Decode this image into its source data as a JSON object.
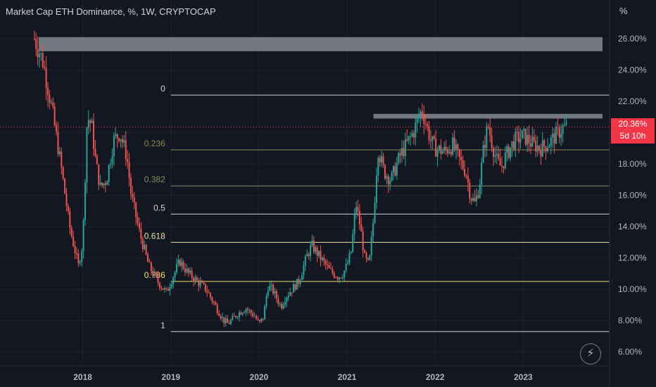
{
  "header": {
    "title": "Market Cap ETH Dominance, %, 1W, CRYPTOCAP",
    "unit_label": "%"
  },
  "price_tag": {
    "value": "20.36%",
    "countdown": "5d 10h"
  },
  "icons": {
    "flash": "lightning-icon"
  },
  "colors": {
    "background": "#131722",
    "up": "#26a69a",
    "down": "#ef5350",
    "fib_neutral": "#d1d4dc",
    "fib_0236": "#8a8656",
    "fib_0382": "#8a8c5c",
    "fib_0618": "#e9e1a6",
    "fib_0786": "#f2e36b",
    "resistance": "#9598a1",
    "last_price": "#f23645"
  },
  "chart_data": {
    "type": "candlestick",
    "title": "Market Cap ETH Dominance, %, 1W, CRYPTOCAP",
    "x_ticks": [
      "2018",
      "2019",
      "2020",
      "2021",
      "2022",
      "2023"
    ],
    "y_ticks": [
      "6.00%",
      "8.00%",
      "10.00%",
      "12.00%",
      "14.00%",
      "16.00%",
      "18.00%",
      "20.00%",
      "22.00%",
      "24.00%",
      "26.00%"
    ],
    "ylim": [
      5.2,
      28.2
    ],
    "xlim": [
      2017.3,
      2023.9
    ],
    "last_value": 20.36,
    "fib_levels": [
      {
        "label": "0",
        "value": 22.4
      },
      {
        "label": "0.236",
        "value": 18.9
      },
      {
        "label": "0.382",
        "value": 16.6
      },
      {
        "label": "0.5",
        "value": 14.8
      },
      {
        "label": "0.618",
        "value": 13.0
      },
      {
        "label": "0.786",
        "value": 10.5
      },
      {
        "label": "1",
        "value": 7.3
      }
    ],
    "resistance_zones": [
      {
        "from": 2017.5,
        "to": 2023.9,
        "low": 25.2,
        "high": 26.1
      },
      {
        "from": 2021.3,
        "to": 2023.9,
        "low": 20.9,
        "high": 21.2
      }
    ],
    "close_series": {
      "x": [
        2017.45,
        2017.55,
        2017.65,
        2017.75,
        2017.85,
        2017.95,
        2018.0,
        2018.05,
        2018.1,
        2018.15,
        2018.2,
        2018.27,
        2018.35,
        2018.42,
        2018.5,
        2018.55,
        2018.65,
        2018.75,
        2018.85,
        2018.95,
        2019.0,
        2019.1,
        2019.2,
        2019.3,
        2019.4,
        2019.5,
        2019.6,
        2019.65,
        2019.75,
        2019.85,
        2019.95,
        2020.0,
        2020.05,
        2020.1,
        2020.15,
        2020.25,
        2020.3,
        2020.45,
        2020.55,
        2020.6,
        2020.7,
        2020.8,
        2020.9,
        2020.95,
        2021.0,
        2021.05,
        2021.1,
        2021.15,
        2021.2,
        2021.25,
        2021.3,
        2021.35,
        2021.42,
        2021.5,
        2021.6,
        2021.7,
        2021.75,
        2021.85,
        2021.9,
        2021.95,
        2022.0,
        2022.1,
        2022.2,
        2022.3,
        2022.35,
        2022.4,
        2022.45,
        2022.5,
        2022.55,
        2022.6,
        2022.65,
        2022.7,
        2022.75,
        2022.8,
        2022.9,
        2023.0,
        2023.1,
        2023.2,
        2023.3,
        2023.4,
        2023.45,
        2023.5
      ],
      "y": [
        26.0,
        24.5,
        21.5,
        18.0,
        14.0,
        11.5,
        13.0,
        21.0,
        20.5,
        18.0,
        16.5,
        17.0,
        19.5,
        20.0,
        18.5,
        16.0,
        13.5,
        11.5,
        10.5,
        9.8,
        10.5,
        11.8,
        11.0,
        10.5,
        10.0,
        9.0,
        8.0,
        7.8,
        8.4,
        8.8,
        8.3,
        7.8,
        8.2,
        10.2,
        10.0,
        8.9,
        9.5,
        10.5,
        12.2,
        12.8,
        12.0,
        11.2,
        10.8,
        11.0,
        11.5,
        12.5,
        15.5,
        14.0,
        12.0,
        11.5,
        14.5,
        19.0,
        17.5,
        17.0,
        18.5,
        19.5,
        20.0,
        21.5,
        20.5,
        19.5,
        19.0,
        18.8,
        19.2,
        18.0,
        17.5,
        16.0,
        15.5,
        16.5,
        19.0,
        20.5,
        19.2,
        18.2,
        17.8,
        18.5,
        19.5,
        19.8,
        19.3,
        19.0,
        19.4,
        20.0,
        20.3,
        20.36
      ]
    }
  }
}
